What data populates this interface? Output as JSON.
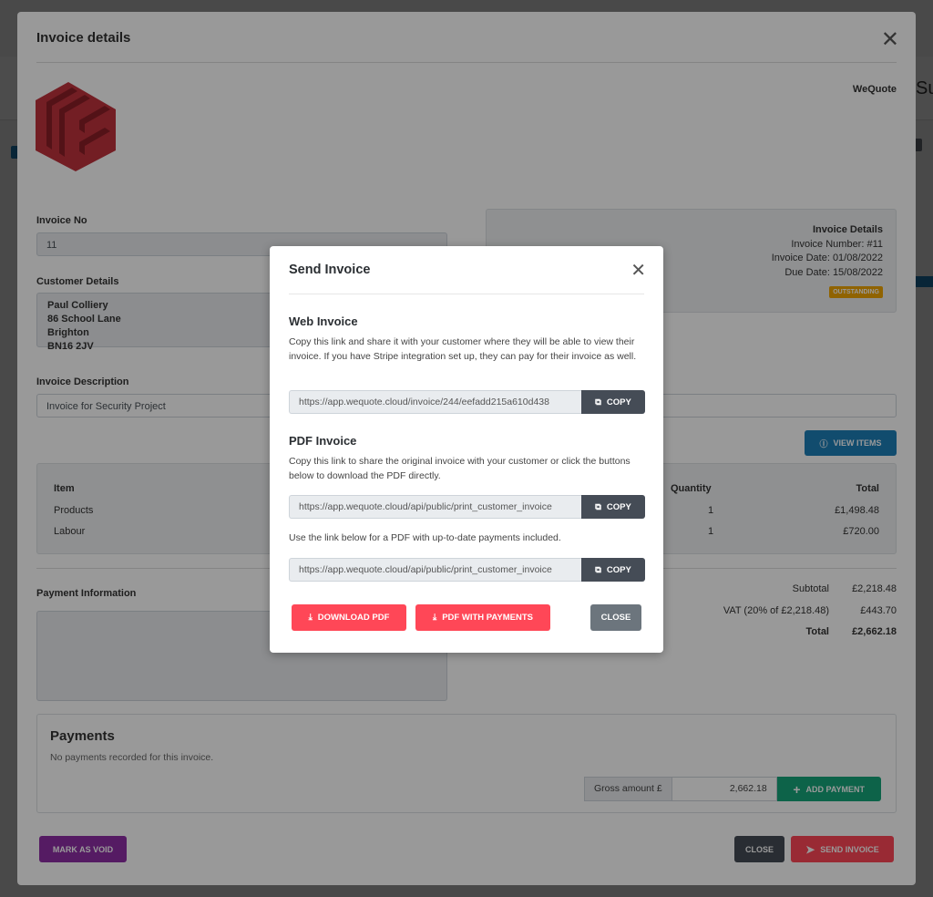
{
  "background": {
    "title_fragment": "Su"
  },
  "invoice_modal": {
    "title": "Invoice details",
    "company": "WeQuote",
    "invoice_no_label": "Invoice No",
    "invoice_no": "11",
    "customer_label": "Customer Details",
    "customer_lines": [
      "Paul Colliery",
      "86 School Lane",
      "Brighton",
      "BN16 2JV"
    ],
    "description_label": "Invoice Description",
    "description": "Invoice for Security Project",
    "details": {
      "heading": "Invoice Details",
      "number": "Invoice Number: #11",
      "date": "Invoice Date: 01/08/2022",
      "due": "Due Date: 15/08/2022",
      "status": "OUTSTANDING"
    },
    "view_items": "VIEW ITEMS",
    "items": {
      "headers": {
        "item": "Item",
        "quantity": "Quantity",
        "total": "Total"
      },
      "rows": [
        {
          "item": "Products",
          "quantity": "1",
          "total": "£1,498.48"
        },
        {
          "item": "Labour",
          "quantity": "1",
          "total": "£720.00"
        }
      ]
    },
    "totals": {
      "subtotal_label": "Subtotal",
      "subtotal": "£2,218.48",
      "vat_label": "VAT (20% of £2,218.48)",
      "vat": "£443.70",
      "total_label": "Total",
      "total": "£2,662.18"
    },
    "payment_info_label": "Payment Information",
    "payments": {
      "heading": "Payments",
      "empty": "No payments recorded for this invoice.",
      "gross_label": "Gross amount £",
      "gross_value": "2,662.18",
      "add": "ADD PAYMENT"
    },
    "mark_void": "MARK AS VOID",
    "close": "CLOSE",
    "send": "SEND INVOICE"
  },
  "send_modal": {
    "title": "Send Invoice",
    "web_heading": "Web Invoice",
    "web_text": "Copy this link and share it with your customer where they will be able to view their invoice. If you have Stripe integration set up, they can pay for their invoice as well.",
    "web_url": "https://app.wequote.cloud/invoice/244/eefadd215a610d438",
    "pdf_heading": "PDF Invoice",
    "pdf_text": "Copy this link to share the original invoice with your customer or click the buttons below to download the PDF directly.",
    "pdf_url": "https://app.wequote.cloud/api/public/print_customer_invoice",
    "payments_text": "Use the link below for a PDF with up-to-date payments included.",
    "payments_url": "https://app.wequote.cloud/api/public/print_customer_invoice",
    "copy": "COPY",
    "download_pdf": "DOWNLOAD PDF",
    "pdf_with_payments": "PDF WITH PAYMENTS",
    "close": "CLOSE"
  },
  "colors": {
    "red": "#ff4757",
    "dark": "#454c56",
    "grey": "#6c757d",
    "blue": "#1d7fb8",
    "green": "#17a67a",
    "purple": "#8e2ea6",
    "orange": "#f0a500"
  }
}
